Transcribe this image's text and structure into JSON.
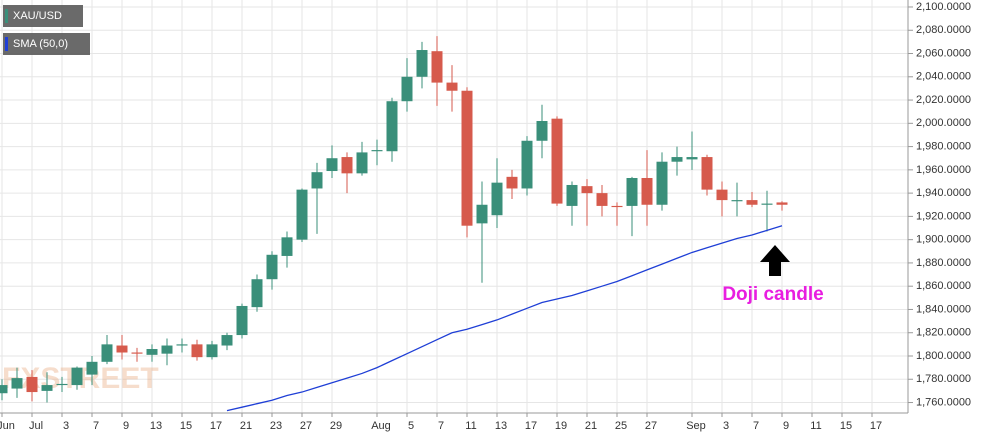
{
  "chart_data": {
    "type": "candlestick",
    "watermark": "FXSTREET",
    "annotation": "Doji candle",
    "categories": [
      "Jun",
      null,
      "Jul",
      null,
      "3",
      null,
      "7",
      null,
      "9",
      null,
      "13",
      null,
      "15",
      null,
      "17",
      null,
      "21",
      null,
      "23",
      null,
      "27",
      null,
      "29",
      null,
      null,
      "Aug",
      null,
      "5",
      null,
      "7",
      null,
      "11",
      null,
      "13",
      null,
      "17",
      null,
      "19",
      null,
      "21",
      null,
      "25",
      null,
      "27",
      null,
      null,
      "Sep",
      null,
      "3",
      null,
      "7",
      null,
      "9",
      null,
      "11",
      null,
      "15",
      null,
      "17"
    ],
    "candles": {
      "name": "XAU/USD",
      "up_color": "#3a8f7a",
      "down_color": "#d65a4c",
      "open": [
        1768,
        1772,
        1782,
        1770,
        1775,
        1775,
        1784,
        1795,
        1809,
        1803,
        1801,
        1802,
        1809,
        1810,
        1799,
        1809,
        1818,
        1842,
        1866,
        1886,
        1900,
        1944,
        1959,
        1971,
        1957,
        1976,
        1976,
        2019,
        2040,
        2062,
        2035,
        2028,
        1914,
        1921,
        1954,
        1944,
        1985,
        2004,
        1929,
        1946,
        1940,
        1929,
        1929,
        1953,
        1930,
        1967,
        1969,
        1971,
        1943,
        1933,
        1934,
        1930,
        1932,
        null,
        null,
        null,
        null,
        null,
        null
      ],
      "high": [
        1780,
        1790,
        1788,
        1786,
        1782,
        1791,
        1800,
        1818,
        1818,
        1807,
        1810,
        1815,
        1815,
        1814,
        1813,
        1820,
        1845,
        1870,
        1890,
        1907,
        1944,
        1966,
        1981,
        1975,
        1984,
        1986,
        2022,
        2056,
        2070,
        2075,
        2050,
        2031,
        1950,
        1970,
        1960,
        1989,
        2016,
        2006,
        1950,
        1952,
        1947,
        1932,
        1954,
        1977,
        1975,
        1980,
        1993,
        1973,
        1950,
        1949,
        1941,
        1942,
        1933,
        null,
        null,
        null,
        null,
        null,
        null
      ],
      "low": [
        1762,
        1764,
        1761,
        1760,
        1769,
        1771,
        1775,
        1793,
        1797,
        1795,
        1795,
        1792,
        1803,
        1796,
        1797,
        1805,
        1815,
        1838,
        1857,
        1876,
        1898,
        1905,
        1953,
        1940,
        1955,
        1964,
        1967,
        2010,
        2030,
        2015,
        2010,
        1902,
        1863,
        1910,
        1935,
        1938,
        1970,
        1929,
        1912,
        1912,
        1920,
        1912,
        1903,
        1912,
        1925,
        1955,
        1960,
        1938,
        1920,
        1920,
        1928,
        1907,
        1925,
        null,
        null,
        null,
        null,
        null,
        null
      ],
      "close": [
        1775,
        1781,
        1769,
        1775,
        1776,
        1790,
        1795,
        1810,
        1803,
        1802,
        1806,
        1809,
        1810,
        1799,
        1810,
        1818,
        1843,
        1866,
        1887,
        1902,
        1943,
        1958,
        1970,
        1957,
        1975,
        1977,
        2019,
        2040,
        2063,
        2035,
        2028,
        1912,
        1930,
        1949,
        1944,
        1985,
        2002,
        1931,
        1947,
        1940,
        1929,
        1928,
        1953,
        1930,
        1967,
        1971,
        1971,
        1943,
        1934,
        1934,
        1930,
        1931,
        1930,
        null,
        null,
        null,
        null,
        null,
        null
      ]
    },
    "series": [
      {
        "name": "SMA (50,0)",
        "color": "#1f3fd6",
        "values": [
          null,
          null,
          null,
          null,
          null,
          null,
          null,
          null,
          null,
          null,
          null,
          null,
          null,
          null,
          null,
          1753,
          1756,
          1759,
          1762,
          1766,
          1769,
          1773,
          1777,
          1781,
          1785,
          1790,
          1796,
          1802,
          1808,
          1814,
          1820,
          1823,
          1827,
          1831,
          1836,
          1841,
          1846,
          1849,
          1852,
          1856,
          1860,
          1864,
          1869,
          1874,
          1879,
          1884,
          1889,
          1893,
          1897,
          1901,
          1904,
          1908,
          1912,
          null,
          null,
          null,
          null,
          null,
          null
        ]
      }
    ],
    "ylim": [
      1751,
      2106
    ],
    "yticks": [
      {
        "value": 1760,
        "label": "1,760.0000"
      },
      {
        "value": 1780,
        "label": "1,780.0000"
      },
      {
        "value": 1800,
        "label": "1,800.0000"
      },
      {
        "value": 1820,
        "label": "1,820.0000"
      },
      {
        "value": 1840,
        "label": "1,840.0000"
      },
      {
        "value": 1860,
        "label": "1,860.0000"
      },
      {
        "value": 1880,
        "label": "1,880.0000"
      },
      {
        "value": 1900,
        "label": "1,900.0000"
      },
      {
        "value": 1920,
        "label": "1,920.0000"
      },
      {
        "value": 1940,
        "label": "1,940.0000"
      },
      {
        "value": 1960,
        "label": "1,960.0000"
      },
      {
        "value": 1980,
        "label": "1,980.0000"
      },
      {
        "value": 2000,
        "label": "2,000.0000"
      },
      {
        "value": 2020,
        "label": "2,020.0000"
      },
      {
        "value": 2040,
        "label": "2,040.0000"
      },
      {
        "value": 2060,
        "label": "2,060.0000"
      },
      {
        "value": 2080,
        "label": "2,080.0000"
      },
      {
        "value": 2100,
        "label": "2,100.0000"
      }
    ],
    "grid": true
  }
}
